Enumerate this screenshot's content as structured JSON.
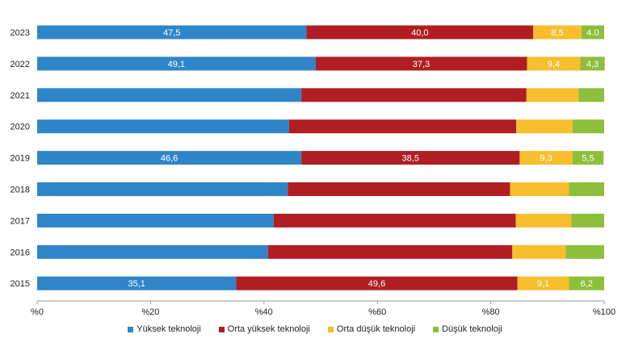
{
  "chart_data": {
    "type": "bar",
    "orientation": "horizontal",
    "stacked": true,
    "categories": [
      "2023",
      "2022",
      "2021",
      "2020",
      "2019",
      "2018",
      "2017",
      "2016",
      "2015"
    ],
    "series": [
      {
        "name": "Yüksek teknoloji",
        "color": "#2E86C8",
        "values": [
          47.5,
          49.1,
          46.6,
          44.4,
          46.6,
          44.2,
          41.7,
          40.7,
          35.1
        ],
        "labels": [
          "47,5",
          "49,1",
          "",
          "",
          "46,6",
          "",
          "",
          "",
          "35,1"
        ]
      },
      {
        "name": "Orta yüksek teknoloji",
        "color": "#B01E23",
        "values": [
          40.0,
          37.3,
          39.7,
          40.1,
          38.5,
          39.2,
          42.7,
          43.1,
          49.6
        ],
        "labels": [
          "40,0",
          "37,3",
          "",
          "",
          "38,5",
          "",
          "",
          "",
          "49,6"
        ]
      },
      {
        "name": "Orta düşük teknoloji",
        "color": "#F7BE2D",
        "values": [
          8.5,
          9.4,
          9.2,
          9.9,
          9.3,
          10.4,
          9.8,
          9.4,
          9.1
        ],
        "labels": [
          "8,5",
          "9,4",
          "",
          "",
          "9,3",
          "",
          "",
          "",
          "9,1"
        ]
      },
      {
        "name": "Düşük teknoloji",
        "color": "#8DBF3A",
        "values": [
          4.0,
          4.3,
          4.5,
          5.6,
          5.5,
          6.2,
          5.8,
          6.8,
          6.2
        ],
        "labels": [
          "4.0",
          "4,3",
          "",
          "",
          "5,5",
          "",
          "",
          "",
          "6,2"
        ]
      }
    ],
    "xlim": [
      0,
      100
    ],
    "x_ticks": [
      0,
      20,
      40,
      60,
      80,
      100
    ],
    "x_tick_labels": [
      "%0",
      "%20",
      "%40",
      "%60",
      "%80",
      "%100"
    ],
    "legend_position": "bottom",
    "grid": false
  }
}
